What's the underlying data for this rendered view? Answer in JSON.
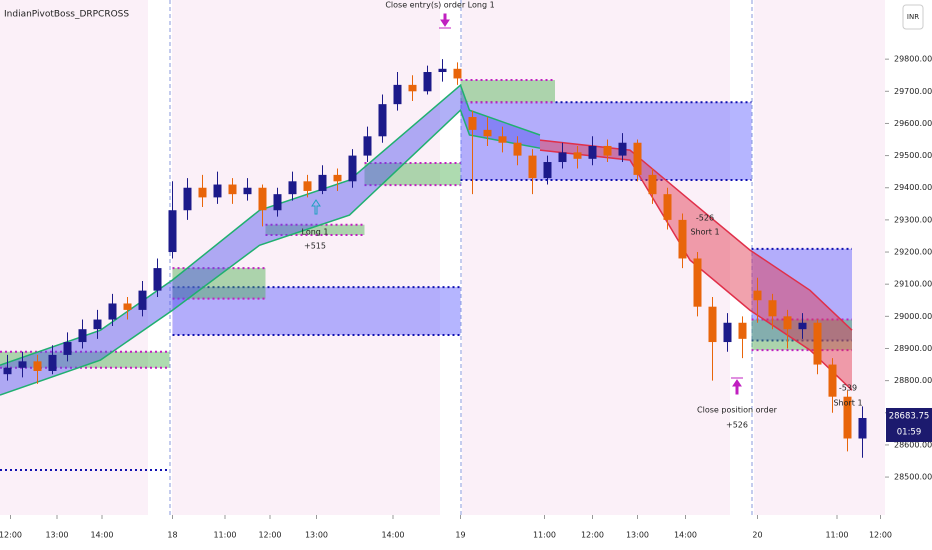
{
  "chart_data": {
    "type": "candlestick",
    "title": "IndianPivotBoss_DRPCROSS",
    "currency": "INR",
    "up_color": "#1c1a8a",
    "down_color": "#e8650a",
    "xlim": [
      0,
      59
    ],
    "ylim": [
      28382,
      29984
    ],
    "xticks": [
      {
        "value": 0.7,
        "label": "12:00"
      },
      {
        "value": 3.8,
        "label": "13:00"
      },
      {
        "value": 6.8,
        "label": "14:00"
      },
      {
        "value": 11.5,
        "label": "18"
      },
      {
        "value": 15,
        "label": "11:00"
      },
      {
        "value": 18,
        "label": "12:00"
      },
      {
        "value": 21.1,
        "label": "13:00"
      },
      {
        "value": 26.2,
        "label": "14:00"
      },
      {
        "value": 30.7,
        "label": "19"
      },
      {
        "value": 36.3,
        "label": "11:00"
      },
      {
        "value": 39.5,
        "label": "12:00"
      },
      {
        "value": 42.5,
        "label": "13:00"
      },
      {
        "value": 45.7,
        "label": "14:00"
      },
      {
        "value": 50.5,
        "label": "20"
      },
      {
        "value": 55.8,
        "label": "11:00"
      },
      {
        "value": 58.7,
        "label": "12:00"
      }
    ],
    "yticks": [
      {
        "value": 28500,
        "label": "28500.00"
      },
      {
        "value": 28600,
        "label": "28600.00"
      },
      {
        "value": 28700,
        "label": "28700.00"
      },
      {
        "value": 28800,
        "label": "28800.00"
      },
      {
        "value": 28900,
        "label": "28900.00"
      },
      {
        "value": 29000,
        "label": "29000.00"
      },
      {
        "value": 29100,
        "label": "29100.00"
      },
      {
        "value": 29200,
        "label": "29200.00"
      },
      {
        "value": 29300,
        "label": "29300.00"
      },
      {
        "value": 29400,
        "label": "29400.00"
      },
      {
        "value": 29500,
        "label": "29500.00"
      },
      {
        "value": 29600,
        "label": "29600.00"
      },
      {
        "value": 29700,
        "label": "29700.00"
      },
      {
        "value": 29800,
        "label": "29800.00"
      }
    ],
    "candles": [
      [
        28820,
        28880,
        28800,
        28840
      ],
      [
        28840,
        28890,
        28810,
        28860
      ],
      [
        28860,
        28880,
        28790,
        28830
      ],
      [
        28830,
        28910,
        28820,
        28880
      ],
      [
        28880,
        28950,
        28860,
        28920
      ],
      [
        28920,
        28990,
        28900,
        28960
      ],
      [
        28960,
        29020,
        28930,
        28990
      ],
      [
        28990,
        29070,
        28970,
        29040
      ],
      [
        29040,
        29060,
        28990,
        29020
      ],
      [
        29020,
        29110,
        29000,
        29080
      ],
      [
        29080,
        29180,
        29060,
        29150
      ],
      [
        29200,
        29420,
        29180,
        29330
      ],
      [
        29330,
        29430,
        29300,
        29400
      ],
      [
        29400,
        29440,
        29340,
        29370
      ],
      [
        29370,
        29450,
        29350,
        29410
      ],
      [
        29410,
        29430,
        29350,
        29380
      ],
      [
        29380,
        29430,
        29360,
        29400
      ],
      [
        29400,
        29410,
        29280,
        29330
      ],
      [
        29330,
        29400,
        29310,
        29380
      ],
      [
        29380,
        29450,
        29360,
        29420
      ],
      [
        29420,
        29440,
        29370,
        29390
      ],
      [
        29390,
        29470,
        29380,
        29440
      ],
      [
        29440,
        29460,
        29390,
        29420
      ],
      [
        29420,
        29520,
        29400,
        29500
      ],
      [
        29500,
        29590,
        29480,
        29560
      ],
      [
        29560,
        29690,
        29540,
        29660
      ],
      [
        29660,
        29760,
        29640,
        29720
      ],
      [
        29720,
        29750,
        29670,
        29700
      ],
      [
        29700,
        29780,
        29690,
        29760
      ],
      [
        29760,
        29800,
        29730,
        29770
      ],
      [
        29770,
        29790,
        29720,
        29740
      ],
      [
        29620,
        29640,
        29380,
        29580
      ],
      [
        29580,
        29620,
        29530,
        29560
      ],
      [
        29560,
        29590,
        29510,
        29540
      ],
      [
        29540,
        29560,
        29470,
        29500
      ],
      [
        29500,
        29520,
        29380,
        29430
      ],
      [
        29430,
        29500,
        29410,
        29480
      ],
      [
        29480,
        29540,
        29460,
        29510
      ],
      [
        29510,
        29530,
        29460,
        29490
      ],
      [
        29490,
        29560,
        29470,
        29530
      ],
      [
        29530,
        29550,
        29480,
        29500
      ],
      [
        29500,
        29570,
        29480,
        29540
      ],
      [
        29540,
        29550,
        29420,
        29440
      ],
      [
        29440,
        29460,
        29350,
        29380
      ],
      [
        29380,
        29400,
        29270,
        29300
      ],
      [
        29300,
        29320,
        29150,
        29180
      ],
      [
        29180,
        29200,
        29000,
        29030
      ],
      [
        29030,
        29060,
        28800,
        28920
      ],
      [
        28920,
        29010,
        28890,
        28980
      ],
      [
        28980,
        29000,
        28870,
        28930
      ],
      [
        29080,
        29120,
        28980,
        29050
      ],
      [
        29050,
        29070,
        28960,
        29000
      ],
      [
        29000,
        29020,
        28900,
        28960
      ],
      [
        28960,
        29010,
        28930,
        28980
      ],
      [
        28980,
        28990,
        28820,
        28850
      ],
      [
        28850,
        28870,
        28700,
        28750
      ],
      [
        28750,
        28770,
        28580,
        28620
      ],
      [
        28620,
        28720,
        28560,
        28683.75
      ]
    ],
    "zones": [
      {
        "x": [
          11.5,
          30.7
        ],
        "y": [
          28942,
          29091
        ],
        "color": "#5b5bff"
      },
      {
        "x": [
          30.7,
          50.1
        ],
        "y": [
          29424,
          29666
        ],
        "color": "#5b5bff"
      },
      {
        "x": [
          50.1,
          56.8
        ],
        "y": [
          28925,
          29210
        ],
        "color": "#5b5bff"
      },
      {
        "x": [
          0,
          11.3
        ],
        "y": [
          28840,
          28890
        ],
        "color": "#4caf50"
      },
      {
        "x": [
          11.5,
          17.7
        ],
        "y": [
          29055,
          29150
        ],
        "color": "#4caf50"
      },
      {
        "x": [
          17.7,
          24.3
        ],
        "y": [
          29253,
          29285
        ],
        "color": "#4caf50"
      },
      {
        "x": [
          24.3,
          30.7
        ],
        "y": [
          29408,
          29477
        ],
        "color": "#4caf50"
      },
      {
        "x": [
          30.7,
          37
        ],
        "y": [
          29666,
          29735
        ],
        "color": "#4caf50"
      },
      {
        "x": [
          50.1,
          56.8
        ],
        "y": [
          28895,
          28990
        ],
        "color": "#4caf50"
      }
    ],
    "levels": [
      {
        "value": 28522,
        "x": [
          0,
          11.3
        ]
      }
    ],
    "ribbons": [
      {
        "color": "#5050ee",
        "x": [
          0,
          6.7,
          11.5,
          17.3,
          23.3,
          30.7,
          31.3,
          36
        ],
        "upper": [
          28848,
          28957,
          29113,
          29330,
          29424,
          29719,
          29641,
          29564
        ],
        "lower": [
          28755,
          28864,
          29019,
          29221,
          29315,
          29641,
          29564,
          29523
        ]
      },
      {
        "color": "#e0304a",
        "x": [
          36,
          42,
          46,
          50,
          54,
          56.8
        ],
        "upper": [
          29548,
          29517,
          29361,
          29206,
          29081,
          28957
        ],
        "lower": [
          29517,
          29486,
          29175,
          29019,
          28895,
          28770
        ]
      }
    ],
    "annotations": [
      "Close entry(s) order Long 1",
      "Long 1",
      "+515",
      "-526",
      "Short 1",
      "Close position order",
      "+526",
      "-539",
      "Short 1"
    ],
    "last_price": 28683.75,
    "countdown": "01:59"
  }
}
